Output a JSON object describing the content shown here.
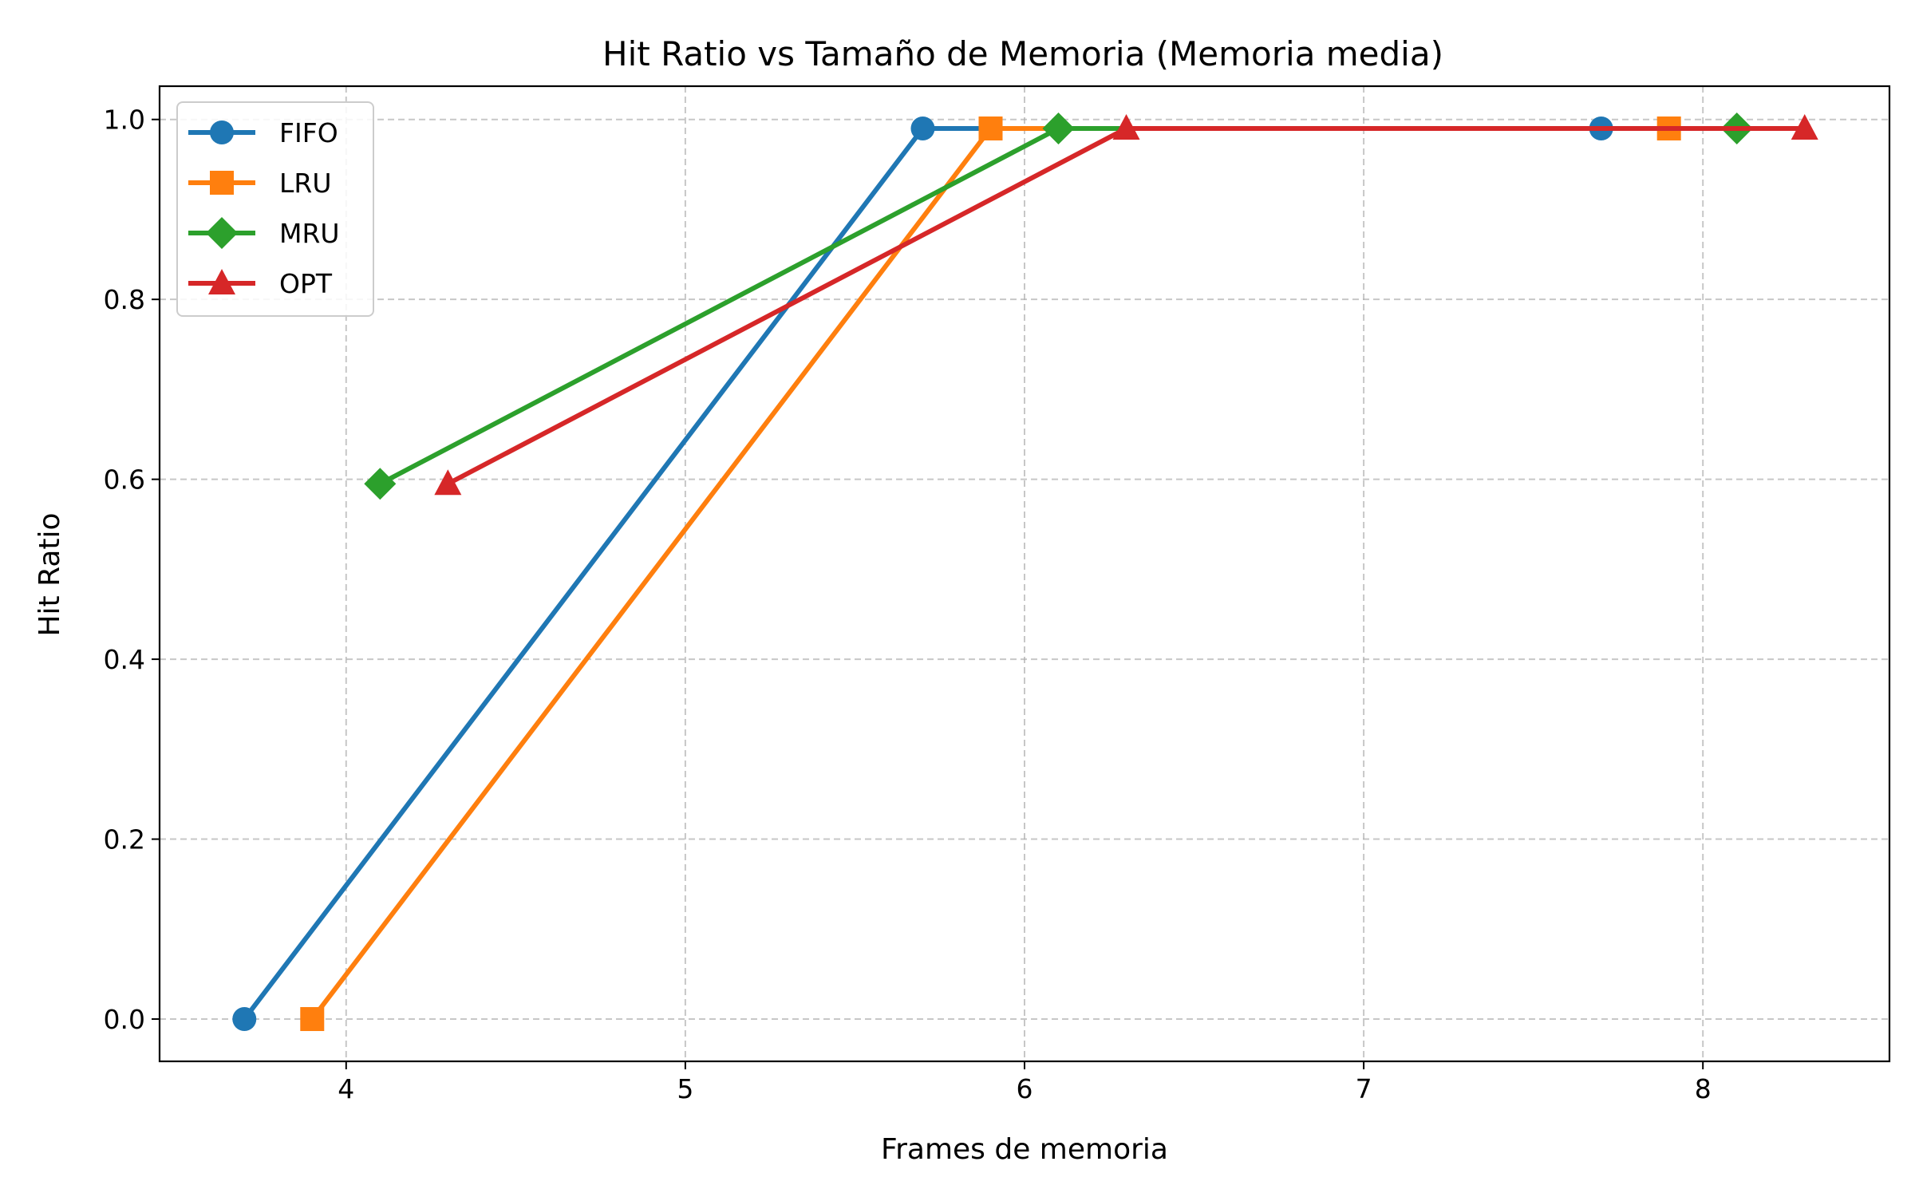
{
  "chart_data": {
    "type": "line",
    "title": "Hit Ratio vs Tamaño de Memoria (Memoria media)",
    "xlabel": "Frames de memoria",
    "ylabel": "Hit Ratio",
    "xlim": [
      3.45,
      8.55
    ],
    "ylim": [
      -0.047,
      1.037
    ],
    "x_ticks": [
      4,
      5,
      6,
      7,
      8
    ],
    "x_tick_labels": [
      "4",
      "5",
      "6",
      "7",
      "8"
    ],
    "y_ticks": [
      0.0,
      0.2,
      0.4,
      0.6,
      0.8,
      1.0
    ],
    "y_tick_labels": [
      "0.0",
      "0.2",
      "0.4",
      "0.6",
      "0.8",
      "1.0"
    ],
    "grid": true,
    "legend_position": "top-left",
    "series": [
      {
        "name": "FIFO",
        "color": "#1f77b4",
        "marker": "circle",
        "x": [
          3.7,
          5.7,
          7.7
        ],
        "y": [
          0.0,
          0.99,
          0.99
        ]
      },
      {
        "name": "LRU",
        "color": "#ff7f0e",
        "marker": "square",
        "x": [
          3.9,
          5.9,
          7.9
        ],
        "y": [
          0.0,
          0.99,
          0.99
        ]
      },
      {
        "name": "MRU",
        "color": "#2ca02c",
        "marker": "diamond",
        "x": [
          4.1,
          6.1,
          8.1
        ],
        "y": [
          0.595,
          0.99,
          0.99
        ]
      },
      {
        "name": "OPT",
        "color": "#d62728",
        "marker": "triangle",
        "x": [
          4.3,
          6.3,
          8.3
        ],
        "y": [
          0.595,
          0.99,
          0.99
        ]
      }
    ]
  }
}
